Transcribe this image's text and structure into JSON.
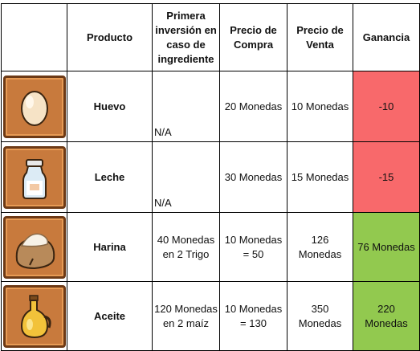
{
  "headers": {
    "image": "",
    "product": "Producto",
    "first_investment": "Primera inversión en caso de ingrediente",
    "buy_price": "Precio de Compra",
    "sell_price": "Precio de Venta",
    "profit": "Ganancia"
  },
  "rows": [
    {
      "icon": "egg-icon",
      "product": "Huevo",
      "first_investment": "N/A",
      "buy_price": "20 Monedas",
      "sell_price": "10 Monedas",
      "profit": "-10",
      "profit_color": "#f8696b"
    },
    {
      "icon": "milk-bottle-icon",
      "product": "Leche",
      "first_investment": "N/A",
      "buy_price": "30 Monedas",
      "sell_price": "15 Monedas",
      "profit": "-15",
      "profit_color": "#f8696b"
    },
    {
      "icon": "flour-sack-icon",
      "product": "Harina",
      "first_investment": "40 Monedas en 2 Trigo",
      "buy_price": "10 Monedas = 50",
      "sell_price": "126 Monedas",
      "profit": "76 Monedas",
      "profit_color": "#92c94f"
    },
    {
      "icon": "oil-bottle-icon",
      "product": "Aceite",
      "first_investment": "120 Monedas en 2 maíz",
      "buy_price": "10 Monedas = 130",
      "sell_price": "350 Monedas",
      "profit": "220 Monedas",
      "profit_color": "#92c94f"
    }
  ]
}
